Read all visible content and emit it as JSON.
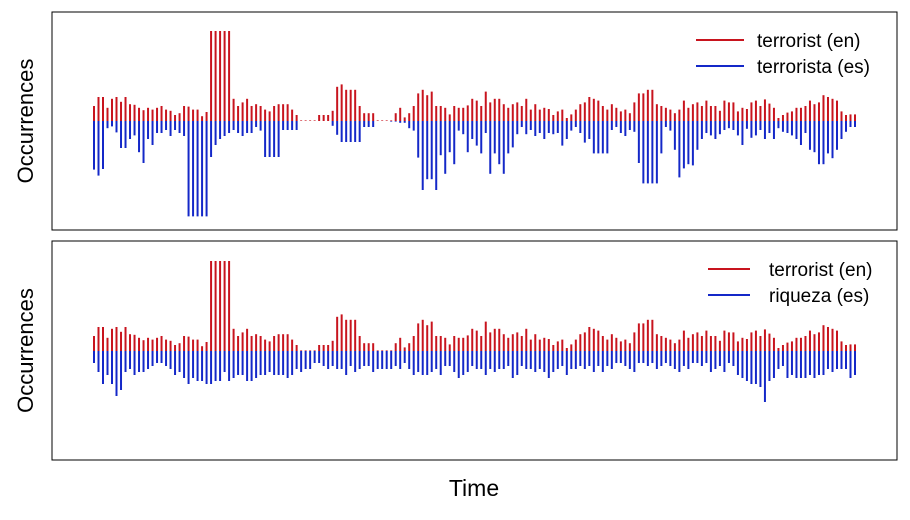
{
  "figure": {
    "xlabel": "Time"
  },
  "colors": {
    "en": "#c8141e",
    "es_top": "#1428c8",
    "es_bottom": "#1428c8",
    "axis": "#000000"
  },
  "chart_data": [
    {
      "type": "bar",
      "ylabel": "Occurrences",
      "xlabel": "",
      "grid": false,
      "legend_position": "top-right",
      "axis_ticks": "none",
      "clipped": true,
      "note_values": "Relative occurrence heights read off the chart (no tick labels printed). Red bars point up, blue bars point down from a common baseline.",
      "series": [
        {
          "name": "terrorist (en)",
          "direction": "up",
          "values": [
            25,
            40,
            40,
            22,
            37,
            40,
            32,
            40,
            28,
            27,
            22,
            18,
            22,
            19,
            22,
            25,
            19,
            17,
            10,
            13,
            25,
            24,
            19,
            19,
            8,
            15,
            150,
            150,
            150,
            150,
            150,
            37,
            25,
            31,
            37,
            25,
            28,
            25,
            19,
            16,
            25,
            28,
            28,
            28,
            19,
            10,
            1,
            1,
            1,
            1,
            10,
            10,
            10,
            17,
            57,
            61,
            52,
            52,
            52,
            25,
            13,
            13,
            13,
            1,
            1,
            1,
            1,
            13,
            22,
            6,
            13,
            25,
            46,
            52,
            43,
            49,
            25,
            25,
            22,
            11,
            25,
            22,
            22,
            26,
            37,
            34,
            25,
            49,
            31,
            37,
            37,
            28,
            22,
            28,
            31,
            25,
            37,
            19,
            28,
            19,
            22,
            20,
            10,
            16,
            19,
            5,
            11,
            19,
            28,
            31,
            40,
            37,
            34,
            25,
            19,
            28,
            22,
            16,
            19,
            13,
            31,
            46,
            46,
            52,
            52,
            28,
            25,
            22,
            19,
            13,
            19,
            34,
            22,
            28,
            31,
            25,
            34,
            25,
            25,
            17,
            34,
            31,
            31,
            16,
            22,
            20,
            31,
            34,
            25,
            36,
            29,
            22,
            5,
            10,
            14,
            16,
            22,
            22,
            25,
            34,
            28,
            31,
            43,
            40,
            37,
            34,
            16,
            10,
            11,
            11
          ]
        },
        {
          "name": "terrorista (es)",
          "direction": "down",
          "values": [
            81,
            91,
            80,
            12,
            9,
            19,
            45,
            45,
            30,
            24,
            52,
            70,
            30,
            40,
            20,
            20,
            15,
            25,
            15,
            20,
            25,
            159,
            159,
            159,
            159,
            159,
            60,
            40,
            30,
            25,
            20,
            15,
            20,
            25,
            20,
            20,
            10,
            16,
            60,
            60,
            60,
            60,
            15,
            15,
            15,
            15,
            0,
            0,
            0,
            0,
            0,
            0,
            0,
            8,
            23,
            35,
            35,
            35,
            35,
            35,
            10,
            10,
            10,
            0,
            0,
            0,
            1,
            1,
            3,
            3,
            12,
            16,
            61,
            115,
            97,
            97,
            115,
            57,
            88,
            52,
            72,
            16,
            22,
            52,
            30,
            41,
            54,
            20,
            88,
            54,
            72,
            88,
            54,
            44,
            22,
            10,
            22,
            15,
            25,
            20,
            30,
            20,
            22,
            20,
            41,
            30,
            16,
            10,
            20,
            36,
            30,
            54,
            54,
            54,
            54,
            15,
            10,
            20,
            25,
            15,
            18,
            70,
            104,
            104,
            104,
            104,
            54,
            10,
            16,
            48,
            94,
            79,
            72,
            74,
            48,
            30,
            20,
            24,
            30,
            22,
            15,
            12,
            15,
            24,
            40,
            13,
            28,
            24,
            15,
            30,
            20,
            30,
            12,
            18,
            20,
            24,
            30,
            40,
            20,
            48,
            52,
            72,
            72,
            54,
            62,
            48,
            30,
            18,
            10,
            10
          ]
        }
      ]
    },
    {
      "type": "bar",
      "ylabel": "Occurrences",
      "xlabel": "",
      "grid": false,
      "legend_position": "top-right",
      "axis_ticks": "none",
      "clipped": true,
      "note_values": "Relative occurrence heights read off the chart (no tick labels printed). Red bars point up, blue bars point down from a common baseline.",
      "series": [
        {
          "name": "terrorist (en)",
          "direction": "up",
          "values": [
            25,
            40,
            40,
            22,
            37,
            40,
            32,
            40,
            28,
            27,
            22,
            18,
            22,
            19,
            22,
            25,
            19,
            17,
            10,
            13,
            25,
            24,
            19,
            19,
            8,
            15,
            150,
            150,
            150,
            150,
            150,
            37,
            25,
            31,
            37,
            25,
            28,
            25,
            19,
            16,
            25,
            28,
            28,
            28,
            19,
            10,
            1,
            1,
            1,
            1,
            10,
            10,
            10,
            17,
            57,
            61,
            52,
            52,
            52,
            25,
            13,
            13,
            13,
            1,
            1,
            1,
            1,
            13,
            22,
            6,
            13,
            25,
            46,
            52,
            43,
            49,
            25,
            25,
            22,
            11,
            25,
            22,
            22,
            26,
            37,
            34,
            25,
            49,
            31,
            37,
            37,
            28,
            22,
            28,
            31,
            25,
            37,
            19,
            28,
            19,
            22,
            20,
            10,
            16,
            19,
            5,
            11,
            19,
            28,
            31,
            40,
            37,
            34,
            25,
            19,
            28,
            22,
            16,
            19,
            13,
            31,
            46,
            46,
            52,
            52,
            28,
            25,
            22,
            19,
            13,
            19,
            34,
            22,
            28,
            31,
            25,
            34,
            25,
            25,
            17,
            34,
            31,
            31,
            16,
            22,
            20,
            31,
            34,
            25,
            36,
            29,
            22,
            5,
            10,
            14,
            16,
            22,
            22,
            25,
            34,
            28,
            31,
            43,
            40,
            37,
            34,
            16,
            10,
            11,
            11
          ]
        },
        {
          "name": "riqueza (es)",
          "direction": "down",
          "values": [
            20,
            35,
            55,
            40,
            55,
            75,
            65,
            35,
            30,
            40,
            35,
            35,
            30,
            25,
            20,
            20,
            25,
            30,
            40,
            35,
            45,
            55,
            45,
            50,
            50,
            55,
            55,
            50,
            50,
            35,
            50,
            45,
            40,
            40,
            50,
            50,
            45,
            40,
            40,
            35,
            40,
            40,
            40,
            45,
            40,
            30,
            35,
            30,
            30,
            20,
            20,
            25,
            30,
            25,
            30,
            30,
            40,
            25,
            35,
            30,
            25,
            25,
            35,
            30,
            30,
            30,
            30,
            25,
            30,
            20,
            30,
            40,
            35,
            40,
            40,
            35,
            30,
            40,
            25,
            25,
            35,
            45,
            40,
            35,
            25,
            30,
            30,
            40,
            30,
            35,
            30,
            30,
            25,
            45,
            40,
            25,
            30,
            30,
            35,
            30,
            35,
            45,
            35,
            30,
            25,
            40,
            30,
            30,
            25,
            30,
            25,
            35,
            25,
            35,
            25,
            30,
            20,
            20,
            25,
            30,
            35,
            20,
            20,
            25,
            20,
            30,
            25,
            20,
            25,
            30,
            35,
            25,
            30,
            20,
            20,
            25,
            20,
            35,
            30,
            25,
            35,
            20,
            25,
            40,
            45,
            50,
            55,
            55,
            60,
            85,
            50,
            45,
            30,
            25,
            45,
            40,
            45,
            45,
            45,
            40,
            45,
            40,
            40,
            30,
            35,
            30,
            30,
            30,
            45,
            40
          ]
        }
      ]
    }
  ]
}
